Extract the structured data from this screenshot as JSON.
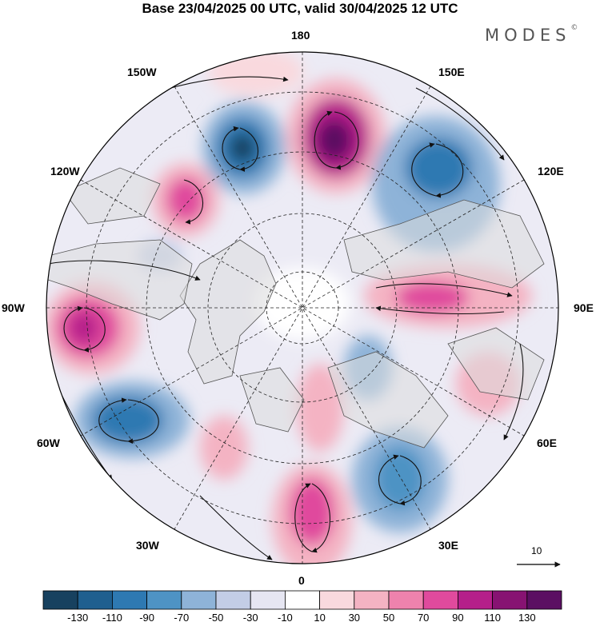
{
  "title": "Base 23/04/2025 00 UTC, valid 30/04/2025 12 UTC",
  "brand": "MODES",
  "brand_mark": "©",
  "longitude_labels": {
    "n180": "180",
    "w150": "150W",
    "e150": "150E",
    "w120": "120W",
    "e120": "120E",
    "w90": "90W",
    "e90": "90E",
    "w60": "60W",
    "e60": "60E",
    "w30": "30W",
    "e30": "30E",
    "s0": "0"
  },
  "vector_reference": "10",
  "colorbar": {
    "labels": [
      "-130",
      "-110",
      "-90",
      "-70",
      "-50",
      "-30",
      "-10",
      "10",
      "30",
      "50",
      "70",
      "90",
      "110",
      "130"
    ],
    "colors": [
      "#17415f",
      "#1f5f8f",
      "#2e79b2",
      "#4e93c4",
      "#8eb3d8",
      "#c3cde6",
      "#e6e6f2",
      "#ffffff",
      "#f9d9de",
      "#f4b3c3",
      "#ee82ad",
      "#e04a9d",
      "#b51f8a",
      "#871372",
      "#5b0f62"
    ]
  }
}
